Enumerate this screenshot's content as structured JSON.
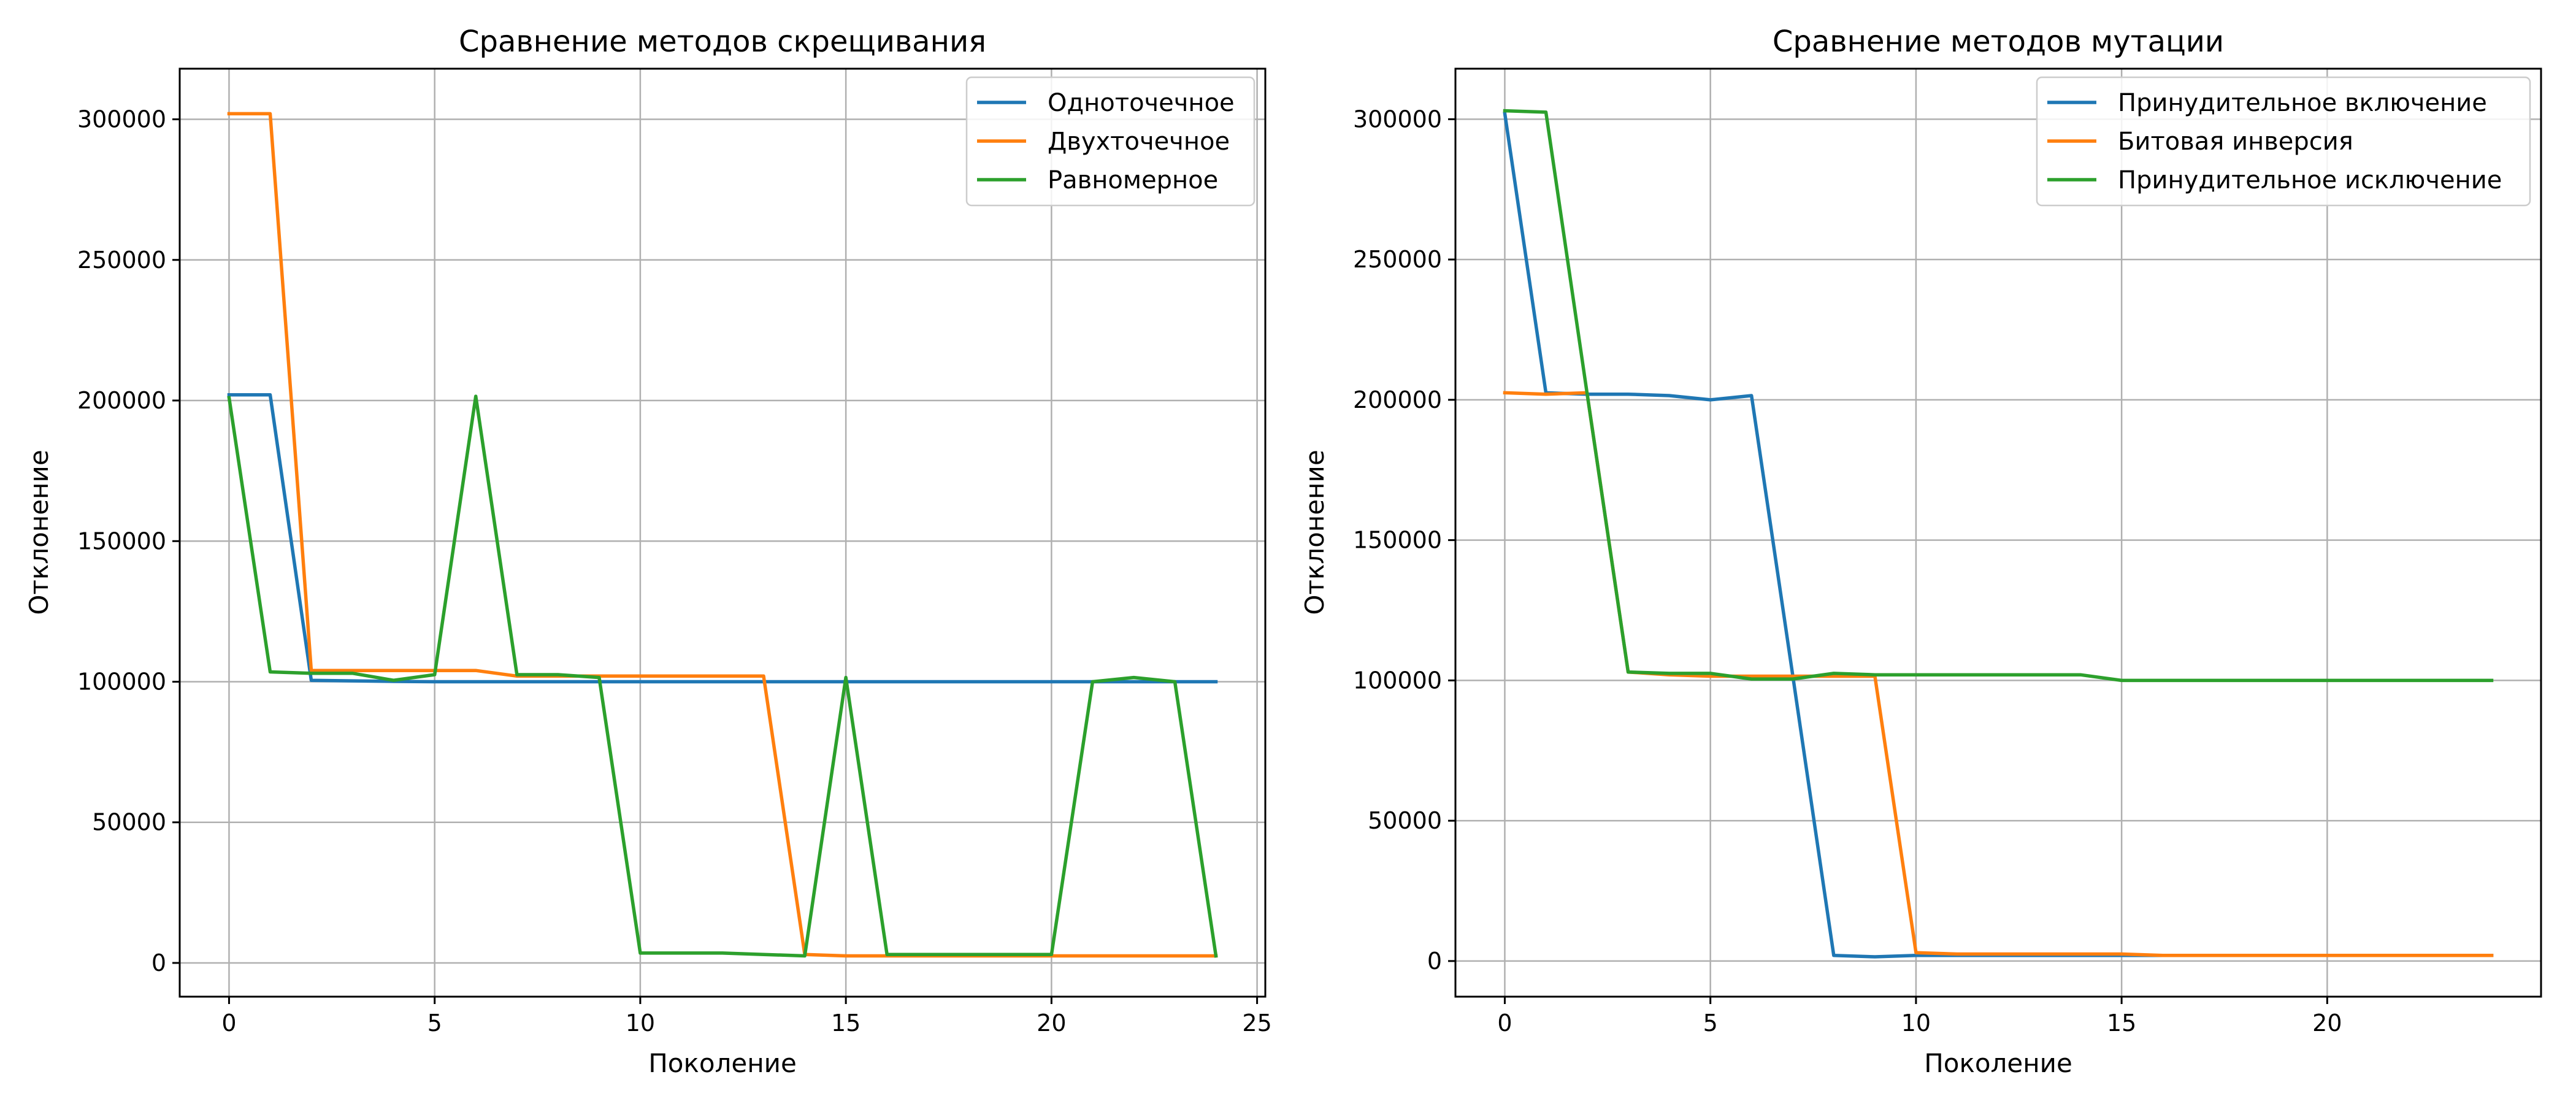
{
  "chart_data": [
    {
      "type": "line",
      "title": "Сравнение методов скрещивания",
      "xlabel": "Поколение",
      "ylabel": "Отклонение",
      "xlim": [
        -1.2,
        25.2
      ],
      "ylim": [
        -12000,
        318000
      ],
      "xticks": [
        0,
        5,
        10,
        15,
        20,
        25
      ],
      "yticks": [
        0,
        50000,
        100000,
        150000,
        200000,
        250000,
        300000
      ],
      "grid": true,
      "legend_position": "top-right",
      "series": [
        {
          "name": "Одноточечное",
          "color": "#1f77b4",
          "x": [
            0,
            1,
            2,
            3,
            4,
            5,
            6,
            7,
            8,
            9,
            10,
            11,
            12,
            13,
            14,
            15,
            16,
            17,
            18,
            19,
            20,
            21,
            22,
            23,
            24
          ],
          "y": [
            202000,
            202000,
            100500,
            100300,
            100100,
            100000,
            100000,
            100000,
            100000,
            100000,
            100000,
            100000,
            100000,
            100000,
            100000,
            100000,
            100000,
            100000,
            100000,
            100000,
            100000,
            100000,
            100000,
            100000,
            100000
          ]
        },
        {
          "name": "Двухточечное",
          "color": "#ff7f0e",
          "x": [
            0,
            1,
            2,
            3,
            4,
            5,
            6,
            7,
            8,
            9,
            10,
            11,
            12,
            13,
            14,
            15,
            16,
            17,
            18,
            19,
            20,
            21,
            22,
            23,
            24
          ],
          "y": [
            302000,
            302000,
            104000,
            104000,
            104000,
            104000,
            104000,
            102000,
            102000,
            102000,
            102000,
            102000,
            102000,
            102000,
            3000,
            2500,
            2500,
            2500,
            2500,
            2500,
            2500,
            2500,
            2500,
            2500,
            2500
          ]
        },
        {
          "name": "Равномерное",
          "color": "#2ca02c",
          "x": [
            0,
            1,
            2,
            3,
            4,
            5,
            6,
            7,
            8,
            9,
            10,
            11,
            12,
            13,
            14,
            15,
            16,
            17,
            18,
            19,
            20,
            21,
            22,
            23,
            24
          ],
          "y": [
            201000,
            103500,
            103000,
            103000,
            100500,
            102500,
            201500,
            102500,
            102500,
            101500,
            3500,
            3500,
            3500,
            3000,
            2500,
            101500,
            3000,
            3000,
            3000,
            3000,
            3000,
            100000,
            101500,
            100000,
            2500
          ]
        }
      ]
    },
    {
      "type": "line",
      "title": "Сравнение методов мутации",
      "xlabel": "Поколение",
      "ylabel": "Отклонение",
      "xlim": [
        -1.2,
        25.2
      ],
      "ylim": [
        -12700,
        318000
      ],
      "xticks": [
        0,
        5,
        10,
        15,
        20
      ],
      "yticks": [
        0,
        50000,
        100000,
        150000,
        200000,
        250000,
        300000
      ],
      "grid": true,
      "legend_position": "top-right",
      "series": [
        {
          "name": "Принудительное включение",
          "color": "#1f77b4",
          "x": [
            0,
            1,
            2,
            3,
            4,
            5,
            6,
            7,
            8,
            9,
            10,
            11,
            12,
            13,
            14,
            15,
            16,
            17,
            18,
            19,
            20,
            21,
            22,
            23,
            24
          ],
          "y": [
            302000,
            202500,
            202000,
            202000,
            201500,
            200000,
            201500,
            102000,
            2000,
            1500,
            2000,
            2000,
            2000,
            2000,
            2000,
            2000,
            2000,
            2000,
            2000,
            2000,
            2000,
            2000,
            2000,
            2000,
            2000
          ]
        },
        {
          "name": "Битовая инверсия",
          "color": "#ff7f0e",
          "x": [
            0,
            1,
            2,
            3,
            4,
            5,
            6,
            7,
            8,
            9,
            10,
            11,
            12,
            13,
            14,
            15,
            16,
            17,
            18,
            19,
            20,
            21,
            22,
            23,
            24
          ],
          "y": [
            202500,
            202000,
            202500,
            103000,
            102000,
            101500,
            101500,
            101500,
            101500,
            101500,
            3000,
            2500,
            2500,
            2500,
            2500,
            2500,
            2000,
            2000,
            2000,
            2000,
            2000,
            2000,
            2000,
            2000,
            2000
          ]
        },
        {
          "name": "Принудительное исключение",
          "color": "#2ca02c",
          "x": [
            0,
            1,
            2,
            3,
            4,
            5,
            6,
            7,
            8,
            9,
            10,
            11,
            12,
            13,
            14,
            15,
            16,
            17,
            18,
            19,
            20,
            21,
            22,
            23,
            24
          ],
          "y": [
            303000,
            302500,
            202500,
            103000,
            102500,
            102500,
            100500,
            100500,
            102500,
            102000,
            102000,
            102000,
            102000,
            102000,
            102000,
            100000,
            100000,
            100000,
            100000,
            100000,
            100000,
            100000,
            100000,
            100000,
            100000
          ]
        }
      ]
    }
  ]
}
